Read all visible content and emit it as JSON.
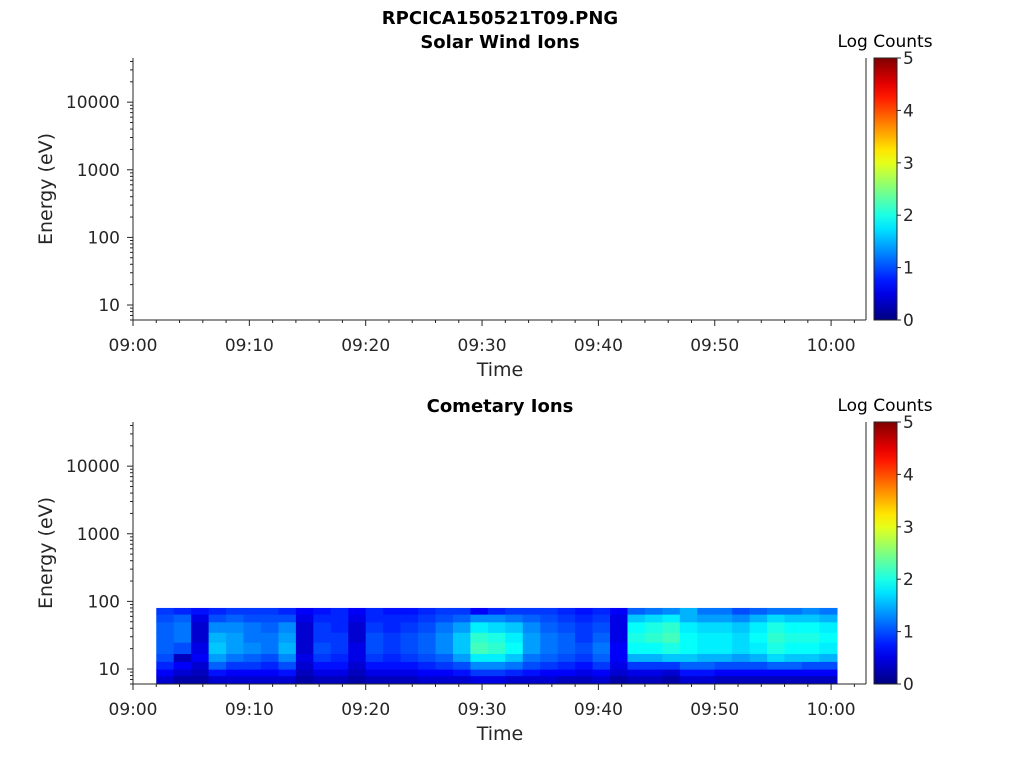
{
  "figure_title": "RPCICA150521T09.PNG",
  "chart_data": [
    {
      "type": "heatmap",
      "title": "Solar Wind Ions",
      "xlabel": "Time",
      "ylabel": "Energy (eV)",
      "yscale": "log",
      "ylim": [
        6,
        45000
      ],
      "x_ticks": [
        "09:00",
        "09:10",
        "09:20",
        "09:30",
        "09:40",
        "09:50",
        "10:00"
      ],
      "y_ticks": [
        10,
        100,
        1000,
        10000
      ],
      "y_tick_labels": [
        "10",
        "100",
        "1000",
        "10000"
      ],
      "colorbar": {
        "label": "Log Counts",
        "range": [
          0,
          5
        ],
        "ticks": [
          "0",
          "1",
          "2",
          "3",
          "4",
          "5"
        ]
      },
      "x_start": "09:00",
      "x_end": "10:03",
      "energy_bins": [],
      "columns": []
    },
    {
      "type": "heatmap",
      "title": "Cometary Ions",
      "xlabel": "Time",
      "ylabel": "Energy (eV)",
      "yscale": "log",
      "ylim": [
        6,
        45000
      ],
      "x_ticks": [
        "09:00",
        "09:10",
        "09:20",
        "09:30",
        "09:40",
        "09:50",
        "10:00"
      ],
      "y_ticks": [
        10,
        100,
        1000,
        10000
      ],
      "y_tick_labels": [
        "10",
        "100",
        "1000",
        "10000"
      ],
      "colorbar": {
        "label": "Log Counts",
        "range": [
          0,
          5
        ],
        "ticks": [
          "0",
          "1",
          "2",
          "3",
          "4",
          "5"
        ]
      },
      "x_start": "09:00",
      "x_end": "10:03",
      "energy_bins": [
        6,
        8,
        10,
        13,
        17,
        25,
        35,
        50,
        65,
        80
      ],
      "columns": [
        {
          "t0": "09:02",
          "t1": "09:03.5",
          "values": [
            0.4,
            0.6,
            0.8,
            1.0,
            1.1,
            1.1,
            1.1,
            1.0,
            0.9
          ]
        },
        {
          "t0": "09:03.5",
          "t1": "09:05",
          "values": [
            0.2,
            0.4,
            0.6,
            0.3,
            1.0,
            1.2,
            1.2,
            1.1,
            0.8
          ]
        },
        {
          "t0": "09:05",
          "t1": "09:06.5",
          "values": [
            0.2,
            0.3,
            0.4,
            0.6,
            0.5,
            0.4,
            0.4,
            0.5,
            0.7
          ]
        },
        {
          "t0": "09:06.5",
          "t1": "09:08",
          "values": [
            0.4,
            0.7,
            1.1,
            1.4,
            1.6,
            1.5,
            1.3,
            1.0,
            0.8
          ]
        },
        {
          "t0": "09:08",
          "t1": "09:09.5",
          "values": [
            0.4,
            0.6,
            0.9,
            1.2,
            1.4,
            1.4,
            1.3,
            1.1,
            0.9
          ]
        },
        {
          "t0": "09:09.5",
          "t1": "09:11",
          "values": [
            0.4,
            0.6,
            0.9,
            1.1,
            1.3,
            1.2,
            1.2,
            1.0,
            0.9
          ]
        },
        {
          "t0": "09:11",
          "t1": "09:12.5",
          "values": [
            0.4,
            0.6,
            0.8,
            1.0,
            1.2,
            1.2,
            1.1,
            1.0,
            0.9
          ]
        },
        {
          "t0": "09:12.5",
          "t1": "09:14",
          "values": [
            0.4,
            0.7,
            1.0,
            1.3,
            1.5,
            1.4,
            1.3,
            1.0,
            0.8
          ]
        },
        {
          "t0": "09:14",
          "t1": "09:15.5",
          "values": [
            0.2,
            0.3,
            0.4,
            0.5,
            0.4,
            0.4,
            0.4,
            0.5,
            0.6
          ]
        },
        {
          "t0": "09:15.5",
          "t1": "09:17",
          "values": [
            0.3,
            0.5,
            0.7,
            0.9,
            1.0,
            0.9,
            0.9,
            0.8,
            0.7
          ]
        },
        {
          "t0": "09:17",
          "t1": "09:18.5",
          "values": [
            0.3,
            0.5,
            0.7,
            0.8,
            0.9,
            0.9,
            0.8,
            0.8,
            0.8
          ]
        },
        {
          "t0": "09:18.5",
          "t1": "09:20",
          "values": [
            0.2,
            0.3,
            0.4,
            0.5,
            0.5,
            0.4,
            0.4,
            0.5,
            0.6
          ]
        },
        {
          "t0": "09:20",
          "t1": "09:21.5",
          "values": [
            0.3,
            0.5,
            0.7,
            0.9,
            1.0,
            1.0,
            0.9,
            0.8,
            0.8
          ]
        },
        {
          "t0": "09:21.5",
          "t1": "09:23",
          "values": [
            0.3,
            0.5,
            0.7,
            0.8,
            0.9,
            0.9,
            0.8,
            0.8,
            0.7
          ]
        },
        {
          "t0": "09:23",
          "t1": "09:24.5",
          "values": [
            0.3,
            0.5,
            0.7,
            0.9,
            1.0,
            1.0,
            0.9,
            0.8,
            0.7
          ]
        },
        {
          "t0": "09:24.5",
          "t1": "09:26",
          "values": [
            0.4,
            0.6,
            0.8,
            1.0,
            1.1,
            1.1,
            1.0,
            0.9,
            0.8
          ]
        },
        {
          "t0": "09:26",
          "t1": "09:27.5",
          "values": [
            0.4,
            0.6,
            0.9,
            1.1,
            1.3,
            1.3,
            1.2,
            1.0,
            0.9
          ]
        },
        {
          "t0": "09:27.5",
          "t1": "09:29",
          "values": [
            0.4,
            0.7,
            1.0,
            1.4,
            1.6,
            1.6,
            1.4,
            1.1,
            0.9
          ]
        },
        {
          "t0": "09:29",
          "t1": "09:30.5",
          "values": [
            0.5,
            0.9,
            1.3,
            1.8,
            2.2,
            2.1,
            1.8,
            1.3,
            0.6
          ]
        },
        {
          "t0": "09:30.5",
          "t1": "09:32",
          "values": [
            0.5,
            0.9,
            1.3,
            1.8,
            2.1,
            2.0,
            1.7,
            1.3,
            0.8
          ]
        },
        {
          "t0": "09:32",
          "t1": "09:33.5",
          "values": [
            0.4,
            0.8,
            1.2,
            1.6,
            1.9,
            1.8,
            1.6,
            1.2,
            0.9
          ]
        },
        {
          "t0": "09:33.5",
          "t1": "09:35",
          "values": [
            0.4,
            0.7,
            1.0,
            1.2,
            1.4,
            1.4,
            1.3,
            1.1,
            0.9
          ]
        },
        {
          "t0": "09:35",
          "t1": "09:36.5",
          "values": [
            0.4,
            0.6,
            0.9,
            1.1,
            1.2,
            1.2,
            1.1,
            1.0,
            0.9
          ]
        },
        {
          "t0": "09:36.5",
          "t1": "09:38",
          "values": [
            0.3,
            0.6,
            0.8,
            1.0,
            1.1,
            1.1,
            1.0,
            0.9,
            0.8
          ]
        },
        {
          "t0": "09:38",
          "t1": "09:39.5",
          "values": [
            0.3,
            0.5,
            0.7,
            0.9,
            1.0,
            0.9,
            0.9,
            0.8,
            0.7
          ]
        },
        {
          "t0": "09:39.5",
          "t1": "09:41",
          "values": [
            0.4,
            0.6,
            0.9,
            1.1,
            1.2,
            1.1,
            1.0,
            0.9,
            0.8
          ]
        },
        {
          "t0": "09:41",
          "t1": "09:42.5",
          "values": [
            0.2,
            0.4,
            0.5,
            0.6,
            0.6,
            0.5,
            0.5,
            0.5,
            0.6
          ]
        },
        {
          "t0": "09:42.5",
          "t1": "09:44",
          "values": [
            0.3,
            0.5,
            0.9,
            1.5,
            1.9,
            2.0,
            1.9,
            1.6,
            1.1
          ]
        },
        {
          "t0": "09:44",
          "t1": "09:45.5",
          "values": [
            0.3,
            0.5,
            0.9,
            1.5,
            1.9,
            2.1,
            2.0,
            1.7,
            1.2
          ]
        },
        {
          "t0": "09:45.5",
          "t1": "09:47",
          "values": [
            0.2,
            0.4,
            0.9,
            1.6,
            2.0,
            2.2,
            2.1,
            1.8,
            1.3
          ]
        },
        {
          "t0": "09:47",
          "t1": "09:48.5",
          "values": [
            0.4,
            0.7,
            1.1,
            1.6,
            1.9,
            1.9,
            1.8,
            1.5,
            1.5
          ]
        },
        {
          "t0": "09:48.5",
          "t1": "09:50",
          "values": [
            0.4,
            0.7,
            1.1,
            1.5,
            1.8,
            1.8,
            1.7,
            1.4,
            1.2
          ]
        },
        {
          "t0": "09:50",
          "t1": "09:51.5",
          "values": [
            0.3,
            0.6,
            1.0,
            1.5,
            1.8,
            1.8,
            1.7,
            1.4,
            1.2
          ]
        },
        {
          "t0": "09:51.5",
          "t1": "09:53",
          "values": [
            0.3,
            0.6,
            1.0,
            1.4,
            1.7,
            1.7,
            1.6,
            1.3,
            1.0
          ]
        },
        {
          "t0": "09:53",
          "t1": "09:54.5",
          "values": [
            0.3,
            0.6,
            1.0,
            1.5,
            1.8,
            1.9,
            1.8,
            1.5,
            1.1
          ]
        },
        {
          "t0": "09:54.5",
          "t1": "09:56",
          "values": [
            0.3,
            0.6,
            1.1,
            1.7,
            2.0,
            2.1,
            2.0,
            1.7,
            1.2
          ]
        },
        {
          "t0": "09:56",
          "t1": "09:57.5",
          "values": [
            0.3,
            0.6,
            1.1,
            1.6,
            1.9,
            2.0,
            1.9,
            1.6,
            1.2
          ]
        },
        {
          "t0": "09:57.5",
          "t1": "09:59",
          "values": [
            0.3,
            0.6,
            1.0,
            1.6,
            1.9,
            2.0,
            1.9,
            1.6,
            1.3
          ]
        },
        {
          "t0": "09:59",
          "t1": "10:00.5",
          "values": [
            0.3,
            0.6,
            1.0,
            1.5,
            1.8,
            1.9,
            1.8,
            1.5,
            1.2
          ]
        }
      ]
    }
  ]
}
